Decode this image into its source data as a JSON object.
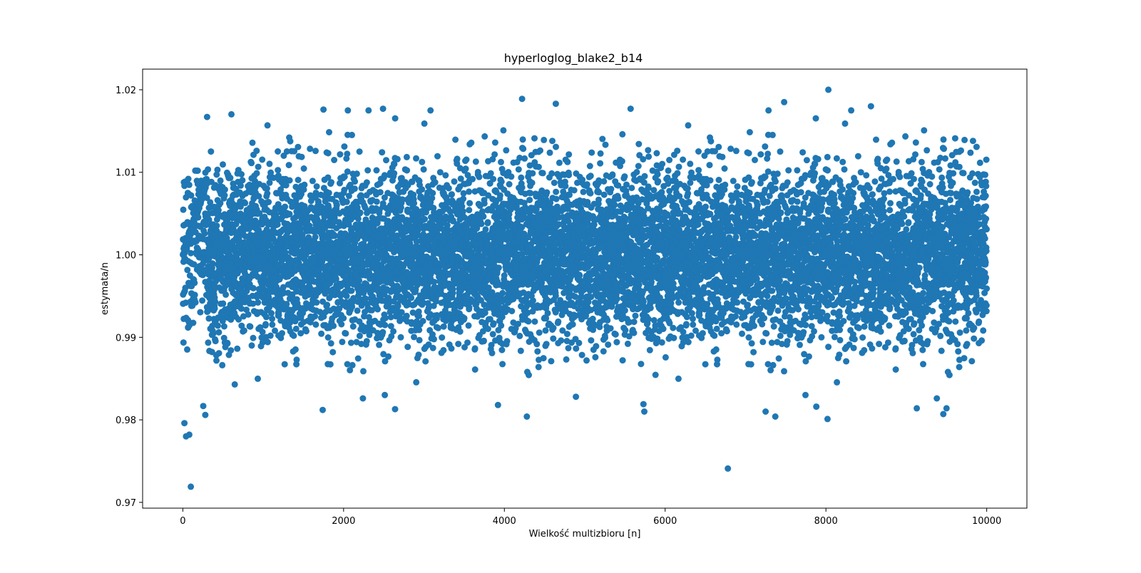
{
  "chart_data": {
    "type": "scatter",
    "title": "hyperloglog_blake2_b14",
    "xlabel": "Wielkość multizbioru [n]",
    "ylabel": "estymata/n",
    "xlim": [
      -500,
      10500
    ],
    "ylim": [
      0.9693,
      1.0225
    ],
    "xticks": [
      0,
      2000,
      4000,
      6000,
      8000,
      10000
    ],
    "xtick_labels": [
      "0",
      "2000",
      "4000",
      "6000",
      "8000",
      "10000"
    ],
    "yticks": [
      0.97,
      0.98,
      0.99,
      1.0,
      1.01,
      1.02
    ],
    "ytick_labels": [
      "0.97",
      "0.98",
      "0.99",
      "1.00",
      "1.01",
      "1.02"
    ],
    "grid": false,
    "marker_color": "#1f77b4",
    "n_points": 10000,
    "x_range": [
      1,
      10000
    ],
    "linear_regime": {
      "x": [
        1,
        300
      ],
      "y": [
        1.0,
        1.009
      ]
    },
    "bulk_band": {
      "center": 1.0,
      "typical_spread": 0.005
    },
    "notable_points": [
      {
        "x": 100,
        "y": 0.9719
      },
      {
        "x": 20,
        "y": 0.9796
      },
      {
        "x": 40,
        "y": 0.978
      },
      {
        "x": 80,
        "y": 0.9782
      },
      {
        "x": 280,
        "y": 0.9806
      },
      {
        "x": 6780,
        "y": 0.9741
      },
      {
        "x": 8030,
        "y": 1.02
      },
      {
        "x": 4220,
        "y": 1.0189
      },
      {
        "x": 7480,
        "y": 1.0185
      },
      {
        "x": 4640,
        "y": 1.0183
      },
      {
        "x": 8560,
        "y": 1.018
      },
      {
        "x": 1750,
        "y": 1.0176
      },
      {
        "x": 2490,
        "y": 1.0177
      },
      {
        "x": 5570,
        "y": 1.0177
      },
      {
        "x": 2310,
        "y": 1.0175
      },
      {
        "x": 4280,
        "y": 0.9804
      },
      {
        "x": 8020,
        "y": 0.9801
      },
      {
        "x": 7370,
        "y": 0.9804
      },
      {
        "x": 9460,
        "y": 0.9807
      },
      {
        "x": 7250,
        "y": 0.981
      },
      {
        "x": 1740,
        "y": 0.9812
      },
      {
        "x": 2640,
        "y": 0.9813
      },
      {
        "x": 9130,
        "y": 0.9814
      },
      {
        "x": 9500,
        "y": 0.9814
      },
      {
        "x": 7880,
        "y": 0.9816
      },
      {
        "x": 5730,
        "y": 0.9819
      },
      {
        "x": 3920,
        "y": 0.9818
      },
      {
        "x": 4890,
        "y": 0.9828
      },
      {
        "x": 9380,
        "y": 0.9826
      },
      {
        "x": 2240,
        "y": 0.9826
      }
    ]
  }
}
